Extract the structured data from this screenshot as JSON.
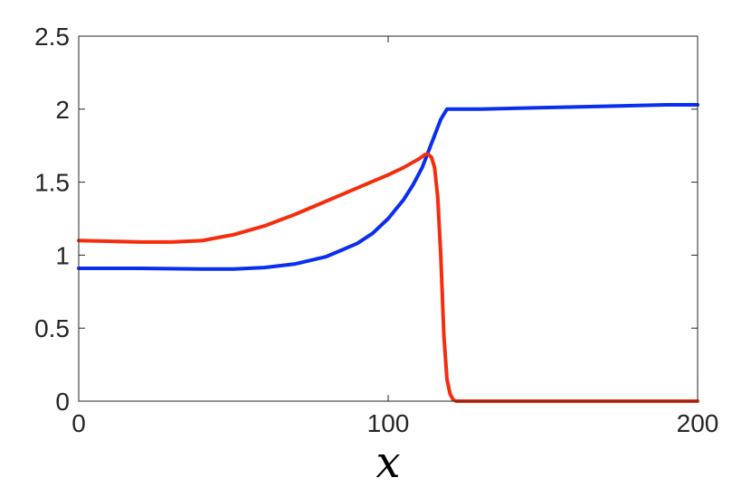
{
  "chart_data": {
    "type": "line",
    "title": "",
    "xlabel": "x",
    "ylabel": "",
    "xlim": [
      0,
      200
    ],
    "ylim": [
      0,
      2.5
    ],
    "xticks": [
      0,
      100,
      200
    ],
    "xtick_labels": [
      "0",
      "100",
      "200"
    ],
    "yticks": [
      0,
      0.5,
      1,
      1.5,
      2,
      2.5
    ],
    "ytick_labels": [
      "0",
      "0.5",
      "1",
      "1.5",
      "2",
      "2.5"
    ],
    "grid": false,
    "legend": "none",
    "series": [
      {
        "color": "#0a2ef0",
        "x": [
          0,
          20,
          40,
          50,
          60,
          70,
          80,
          90,
          95,
          100,
          105,
          108,
          111,
          113,
          115,
          117,
          119,
          120,
          130,
          150,
          170,
          190,
          200
        ],
        "y": [
          0.91,
          0.91,
          0.905,
          0.905,
          0.915,
          0.94,
          0.99,
          1.08,
          1.15,
          1.25,
          1.38,
          1.48,
          1.6,
          1.71,
          1.82,
          1.93,
          2.0,
          2.0,
          2.0,
          2.01,
          2.02,
          2.03,
          2.03
        ]
      },
      {
        "color": "#f52d0c",
        "x": [
          0,
          10,
          20,
          30,
          40,
          50,
          60,
          70,
          80,
          90,
          100,
          105,
          110,
          112,
          113,
          114,
          115,
          116,
          117,
          118,
          119,
          120,
          121,
          122,
          125,
          150,
          200
        ],
        "y": [
          1.1,
          1.095,
          1.09,
          1.09,
          1.1,
          1.14,
          1.2,
          1.28,
          1.37,
          1.46,
          1.55,
          1.6,
          1.66,
          1.69,
          1.69,
          1.67,
          1.6,
          1.4,
          1.0,
          0.45,
          0.15,
          0.05,
          0.01,
          0.0,
          0.0,
          0.0,
          0.0
        ]
      }
    ]
  }
}
